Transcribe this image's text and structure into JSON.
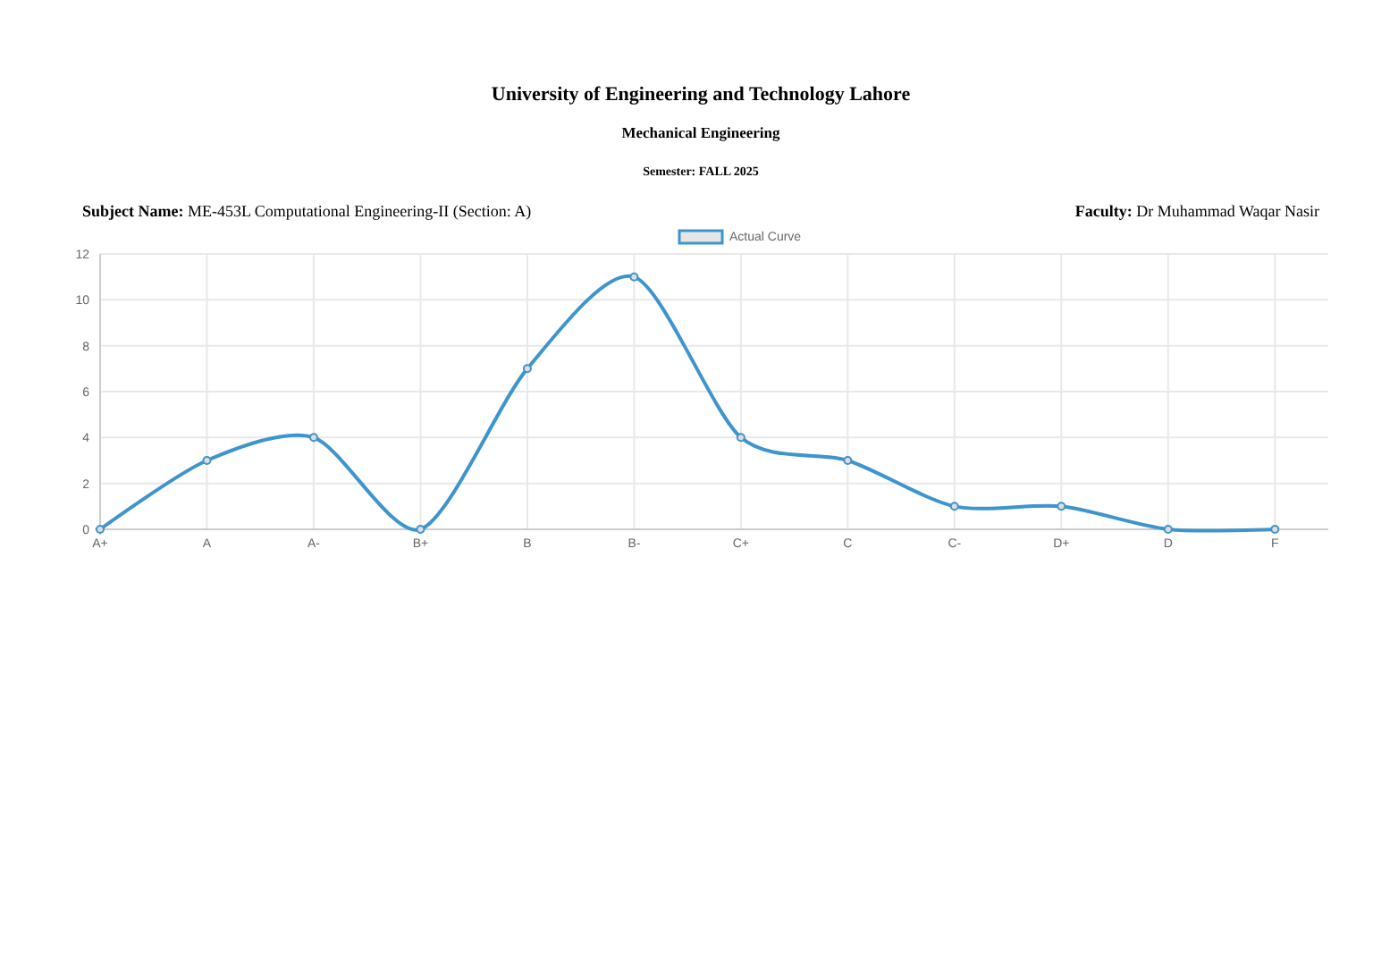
{
  "chart_data": {
    "type": "line",
    "title": "University of Engineering and Technology Lahore",
    "subtitle": "Mechanical Engineering",
    "annotations": [
      "Semester: FALL 2025",
      "Subject Name: ME-453L Computational Engineering-II (Section: A)",
      "Faculty: Dr Muhammad Waqar Nasir"
    ],
    "categories": [
      "A+",
      "A",
      "A-",
      "B+",
      "B",
      "B-",
      "C+",
      "C",
      "C-",
      "D+",
      "D",
      "F"
    ],
    "series": [
      {
        "name": "Actual Curve",
        "color": "#3e95cd",
        "values": [
          0,
          3,
          4,
          0,
          7,
          11,
          4,
          3,
          1,
          1,
          0,
          0
        ]
      }
    ],
    "ylim": [
      0,
      12
    ],
    "yticks": [
      0,
      2,
      4,
      6,
      8,
      10,
      12
    ],
    "grid": true,
    "legend": "top",
    "marker": "circle",
    "line_style": "solid"
  }
}
